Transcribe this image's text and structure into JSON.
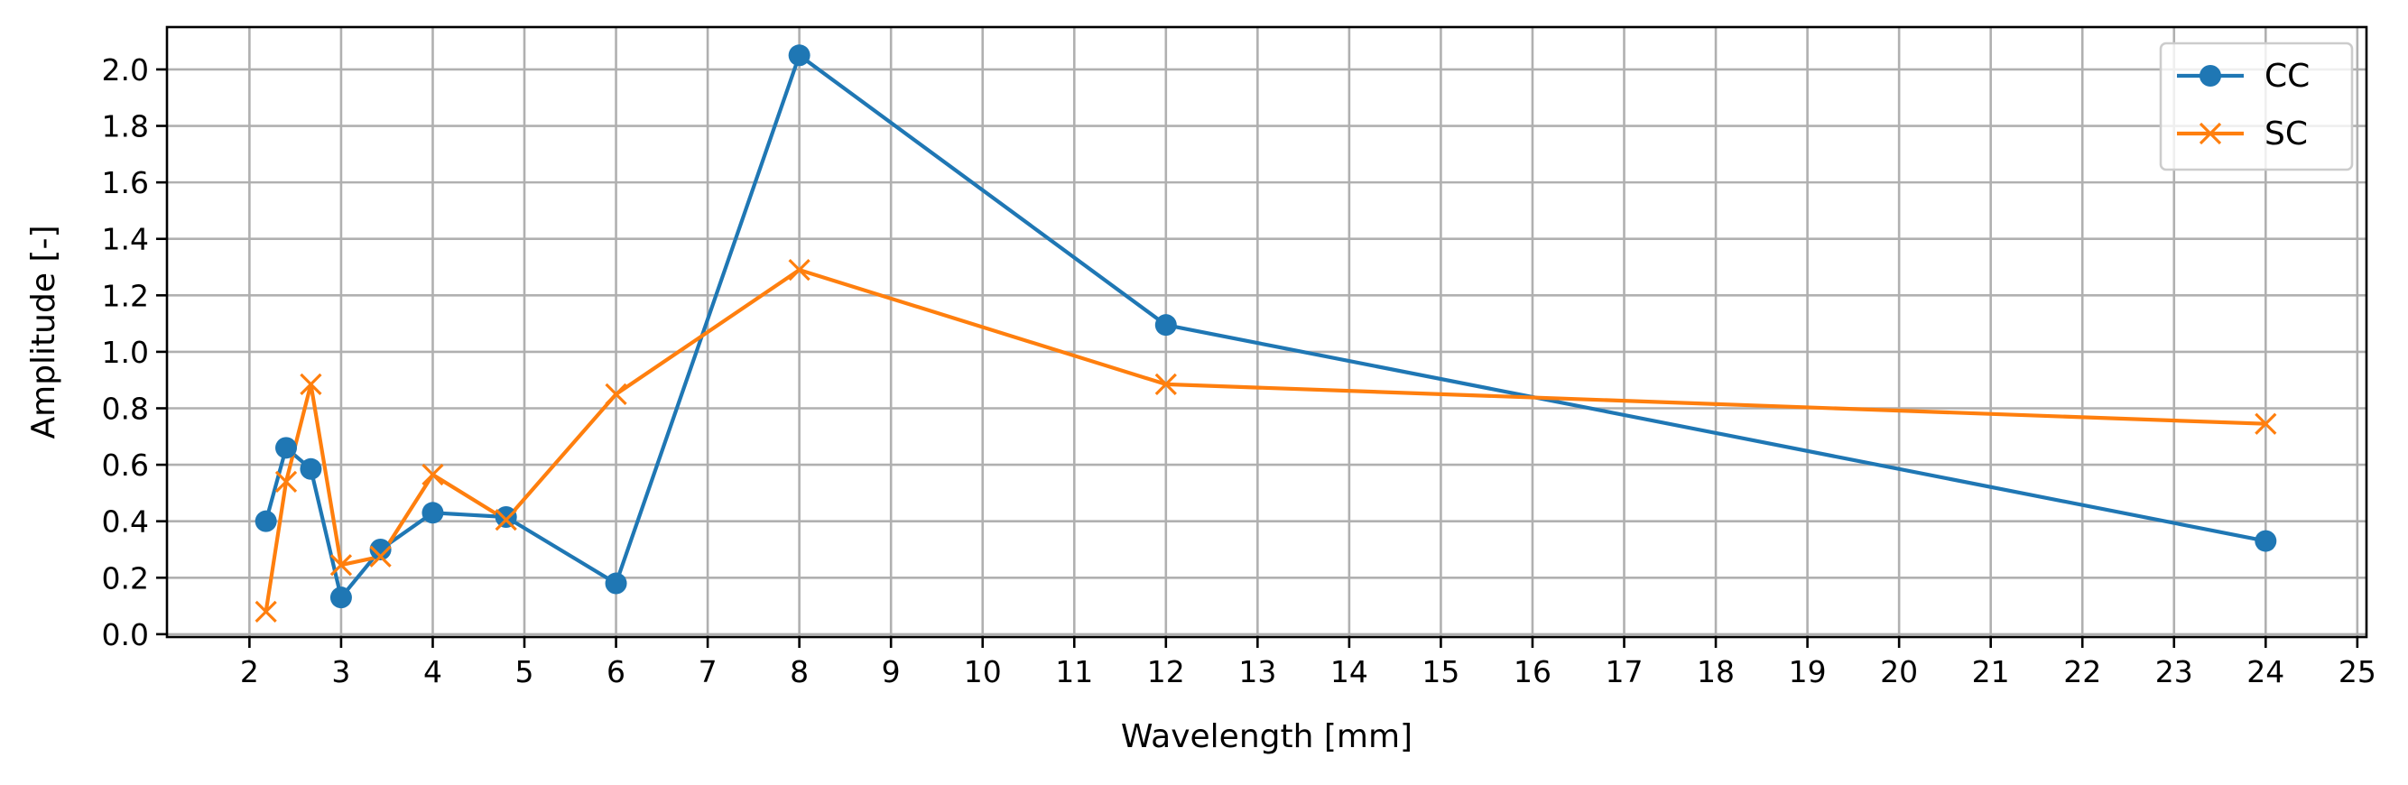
{
  "chart_data": {
    "type": "line",
    "xlabel": "Wavelength [mm]",
    "ylabel": "Amplitude [-]",
    "xlim": [
      1.1,
      25.1
    ],
    "ylim": [
      -0.01,
      2.15
    ],
    "x_ticks": [
      2,
      3,
      4,
      5,
      6,
      7,
      8,
      9,
      10,
      11,
      12,
      13,
      14,
      15,
      16,
      17,
      18,
      19,
      20,
      21,
      22,
      23,
      24,
      25
    ],
    "y_ticks": [
      0.0,
      0.2,
      0.4,
      0.6,
      0.8,
      1.0,
      1.2,
      1.4,
      1.6,
      1.8,
      2.0
    ],
    "grid": true,
    "legend_position": "top-right",
    "series": [
      {
        "name": "CC",
        "color": "#1f77b4",
        "marker": "circle",
        "x": [
          2.18,
          2.4,
          2.67,
          3.0,
          3.43,
          4.0,
          4.8,
          6.0,
          8.0,
          12.0,
          24.0
        ],
        "y": [
          0.4,
          0.66,
          0.585,
          0.13,
          0.3,
          0.43,
          0.415,
          0.18,
          2.05,
          1.095,
          0.33
        ]
      },
      {
        "name": "SC",
        "color": "#ff7f0e",
        "marker": "x",
        "x": [
          2.18,
          2.4,
          2.67,
          3.0,
          3.43,
          4.0,
          4.8,
          6.0,
          8.0,
          12.0,
          24.0
        ],
        "y": [
          0.08,
          0.54,
          0.885,
          0.245,
          0.275,
          0.565,
          0.405,
          0.85,
          1.29,
          0.885,
          0.745
        ]
      }
    ]
  }
}
